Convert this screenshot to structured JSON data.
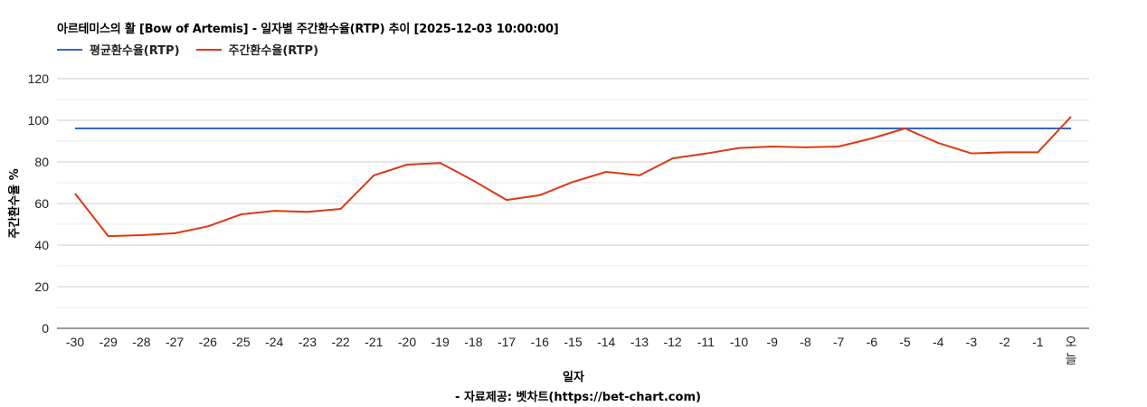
{
  "chart_data": {
    "type": "line",
    "title": "아르테미스의 활 [Bow of Artemis] - 일자별 주간환수율(RTP) 추이 [2025-12-03 10:00:00]",
    "xlabel": "일자",
    "ylabel": "주간환수율 %",
    "ylim": [
      0,
      120
    ],
    "yticks": [
      0,
      20,
      40,
      60,
      80,
      100,
      120
    ],
    "grid": true,
    "legend_position": "top-left",
    "categories": [
      "-30",
      "-29",
      "-28",
      "-27",
      "-26",
      "-25",
      "-24",
      "-23",
      "-22",
      "-21",
      "-20",
      "-19",
      "-18",
      "-17",
      "-16",
      "-15",
      "-14",
      "-13",
      "-12",
      "-11",
      "-10",
      "-9",
      "-8",
      "-7",
      "-6",
      "-5",
      "-4",
      "-3",
      "-2",
      "-1",
      "오늘"
    ],
    "series": [
      {
        "name": "평균환수율(RTP)",
        "color": "#3366cc",
        "values": [
          96.1,
          96.1,
          96.1,
          96.1,
          96.1,
          96.1,
          96.1,
          96.1,
          96.1,
          96.1,
          96.1,
          96.1,
          96.1,
          96.1,
          96.1,
          96.1,
          96.1,
          96.1,
          96.1,
          96.1,
          96.1,
          96.1,
          96.1,
          96.1,
          96.1,
          96.1,
          96.1,
          96.1,
          96.1,
          96.1,
          96.1
        ]
      },
      {
        "name": "주간환수율(RTP)",
        "color": "#dc3912",
        "values": [
          64.8,
          44.3,
          44.8,
          45.7,
          49.0,
          54.8,
          56.5,
          56.0,
          57.4,
          73.5,
          78.7,
          79.5,
          71.0,
          61.7,
          64.0,
          70.4,
          75.2,
          73.5,
          81.7,
          84.0,
          86.7,
          87.4,
          87.0,
          87.4,
          91.3,
          96.1,
          89.1,
          84.1,
          84.6,
          84.6,
          101.7
        ]
      }
    ],
    "footer": "- 자료제공: 벳차트(https://bet-chart.com)"
  },
  "legend": [
    {
      "label": "평균환수율(RTP)",
      "color": "#3366cc"
    },
    {
      "label": "주간환수율(RTP)",
      "color": "#dc3912"
    }
  ]
}
